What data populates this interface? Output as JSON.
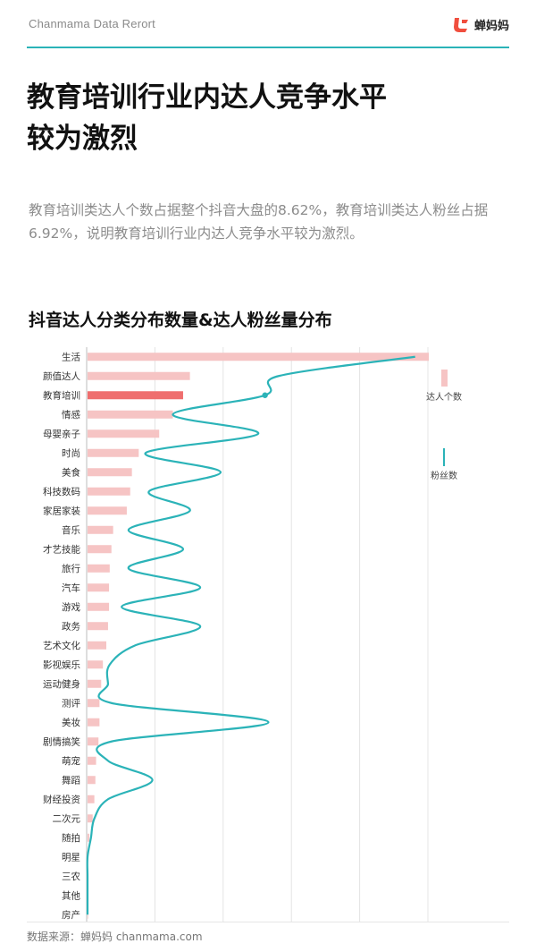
{
  "header": {
    "brand": "Chanmama Data Rerort",
    "logo_text": "蝉妈妈"
  },
  "headline": {
    "line1": "教育培训行业内达人竞争水平",
    "line2": "较为激烈"
  },
  "description": "教育培训类达人个数占据整个抖音大盘的8.62%，教育培训类达人粉丝占据6.92%，说明教育培训行业内达人竞争水平较为激烈。",
  "colors": {
    "accent": "#2bb3b8",
    "bar": "#f6c4c4",
    "bar_highlight": "#ef6e6e",
    "line": "#2bb3b8"
  },
  "chart_data": {
    "type": "bar",
    "orientation": "horizontal",
    "title": "抖音达人分类分布数量&达人粉丝量分布",
    "categories": [
      "生活",
      "颜值达人",
      "教育培训",
      "情感",
      "母婴亲子",
      "时尚",
      "美食",
      "科技数码",
      "家居家装",
      "音乐",
      "才艺技能",
      "旅行",
      "汽车",
      "游戏",
      "政务",
      "艺术文化",
      "影视娱乐",
      "运动健身",
      "测评",
      "美妆",
      "剧情搞笑",
      "萌宠",
      "舞蹈",
      "财经投资",
      "二次元",
      "随拍",
      "明星",
      "三农",
      "其他",
      "房产"
    ],
    "highlight_category": "教育培训",
    "series": [
      {
        "name": "达人个数",
        "kind": "bar",
        "values": [
          100,
          30,
          28,
          25,
          21,
          15,
          13,
          12.5,
          11.5,
          7.5,
          7,
          6.5,
          6.3,
          6.3,
          6,
          5.5,
          4.5,
          4,
          3.5,
          3.5,
          3.2,
          2.5,
          2.3,
          2,
          1.5,
          0.5,
          0.2,
          0.1,
          0.1,
          0.1
        ]
      },
      {
        "name": "粉丝数",
        "kind": "line",
        "values": [
          96,
          56,
          52,
          25,
          50,
          17,
          39,
          18,
          30,
          12,
          28,
          12,
          33,
          10,
          33,
          14,
          6.5,
          6,
          7,
          53,
          7,
          6,
          19,
          6,
          2,
          1,
          0,
          0,
          0,
          0
        ]
      }
    ],
    "xlim": [
      0,
      100
    ],
    "grid": true,
    "legend_position": "right"
  },
  "footer": {
    "source": "数据来源：蝉妈妈 chanmama.com"
  }
}
